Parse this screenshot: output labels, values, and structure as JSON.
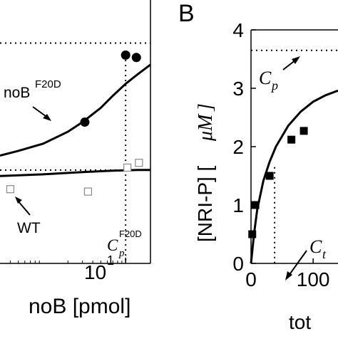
{
  "chart_data": [
    {
      "type": "scatter",
      "panel": "A",
      "xscale": "log",
      "xlabel": "noB [pmol]",
      "xlim": [
        0.3,
        20
      ],
      "xticks": [
        {
          "value": 10,
          "label": "10"
        }
      ],
      "ylim": [
        0,
        1.1
      ],
      "grid": false,
      "series": [
        {
          "name": "noB",
          "superscript": "F20D",
          "marker": "filled-circle",
          "x": [
            3.2,
            10,
            13.5
          ],
          "y": [
            0.59,
            0.87,
            0.86
          ]
        },
        {
          "name": "WT",
          "marker": "open-square",
          "x": [
            0.4,
            3.5,
            10.5,
            14.5
          ],
          "y": [
            0.31,
            0.3,
            0.4,
            0.42
          ]
        }
      ],
      "curves": [
        {
          "of": "noB",
          "x": [
            0.3,
            0.5,
            1,
            2,
            3,
            5,
            7,
            10,
            14,
            20
          ],
          "y": [
            0.45,
            0.47,
            0.5,
            0.55,
            0.59,
            0.65,
            0.7,
            0.75,
            0.79,
            0.83
          ]
        },
        {
          "of": "WT",
          "x": [
            0.3,
            0.5,
            1,
            2,
            3,
            5,
            7,
            10,
            14,
            20
          ],
          "y": [
            0.365,
            0.368,
            0.372,
            0.378,
            0.381,
            0.385,
            0.387,
            0.389,
            0.39,
            0.39
          ]
        }
      ],
      "reference_lines": [
        {
          "kind": "horizontal-dotted",
          "y": 0.92
        },
        {
          "kind": "horizontal-dotted",
          "y": 0.39
        },
        {
          "kind": "vertical-dotted",
          "x": 10
        }
      ],
      "annotations": [
        {
          "text": "noB",
          "superscript": "F20D",
          "arrow_to_series": "noB"
        },
        {
          "text": "WT",
          "arrow_to_series": "WT"
        },
        {
          "text": "C",
          "subscript": "p",
          "superscript": "F20D"
        }
      ]
    },
    {
      "type": "scatter",
      "panel": "B",
      "title": "B",
      "ylabel": "[NRI-P] [",
      "ylabel_unit": "μM",
      "xlabel": "tot",
      "xlim": [
        0,
        140
      ],
      "ylim": [
        0,
        4
      ],
      "yticks": [
        0,
        1,
        2,
        3,
        4
      ],
      "xticks": [
        {
          "value": 0,
          "label": "0"
        },
        {
          "value": 100,
          "label": "100"
        }
      ],
      "grid": false,
      "series": [
        {
          "marker": "filled-square",
          "x": [
            2,
            7,
            30,
            65,
            85
          ],
          "y": [
            0.5,
            1.0,
            1.5,
            2.12,
            2.27
          ]
        }
      ],
      "curves": [
        {
          "x": [
            0,
            5,
            10,
            20,
            30,
            40,
            60,
            80,
            100,
            120,
            140
          ],
          "y": [
            0,
            0.52,
            0.92,
            1.42,
            1.74,
            2.0,
            2.36,
            2.6,
            2.77,
            2.88,
            2.96
          ]
        }
      ],
      "reference_lines": [
        {
          "kind": "horizontal-dotted",
          "y": 3.65
        },
        {
          "kind": "vertical-dotted",
          "x": 38,
          "from": 0,
          "to": 1.65
        }
      ],
      "annotations": [
        {
          "text": "C",
          "subscript": "p"
        },
        {
          "text": "C",
          "subscript": "t"
        }
      ]
    }
  ]
}
